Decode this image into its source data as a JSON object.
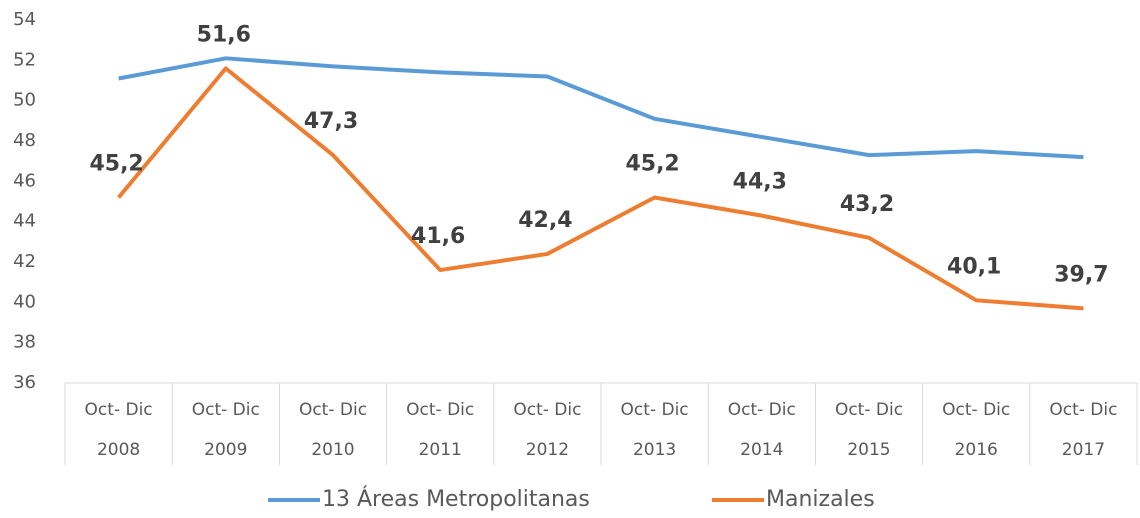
{
  "chart_data": {
    "type": "line",
    "categories": [
      [
        "Oct- Dic",
        "2008"
      ],
      [
        "Oct- Dic",
        "2009"
      ],
      [
        "Oct- Dic",
        "2010"
      ],
      [
        "Oct- Dic",
        "2011"
      ],
      [
        "Oct- Dic",
        "2012"
      ],
      [
        "Oct- Dic",
        "2013"
      ],
      [
        "Oct- Dic",
        "2014"
      ],
      [
        "Oct- Dic",
        "2015"
      ],
      [
        "Oct- Dic",
        "2016"
      ],
      [
        "Oct- Dic",
        "2017"
      ]
    ],
    "series": [
      {
        "name": "13 Áreas Metropolitanas",
        "color": "#5b9bd5",
        "values": [
          51.1,
          52.1,
          51.7,
          51.4,
          51.2,
          49.1,
          48.2,
          47.3,
          47.5,
          47.2
        ]
      },
      {
        "name": "Manizales",
        "color": "#ed7d31",
        "values": [
          45.2,
          51.6,
          47.3,
          41.6,
          42.4,
          45.2,
          44.3,
          43.2,
          40.1,
          39.7
        ],
        "value_labels": [
          "45,2",
          "51,6",
          "47,3",
          "41,6",
          "42,4",
          "45,2",
          "44,3",
          "43,2",
          "40,1",
          "39,7"
        ]
      }
    ],
    "ylim": [
      36,
      54
    ],
    "yticks": [
      36,
      38,
      40,
      42,
      44,
      46,
      48,
      50,
      52,
      54
    ],
    "legend": "bottom"
  }
}
